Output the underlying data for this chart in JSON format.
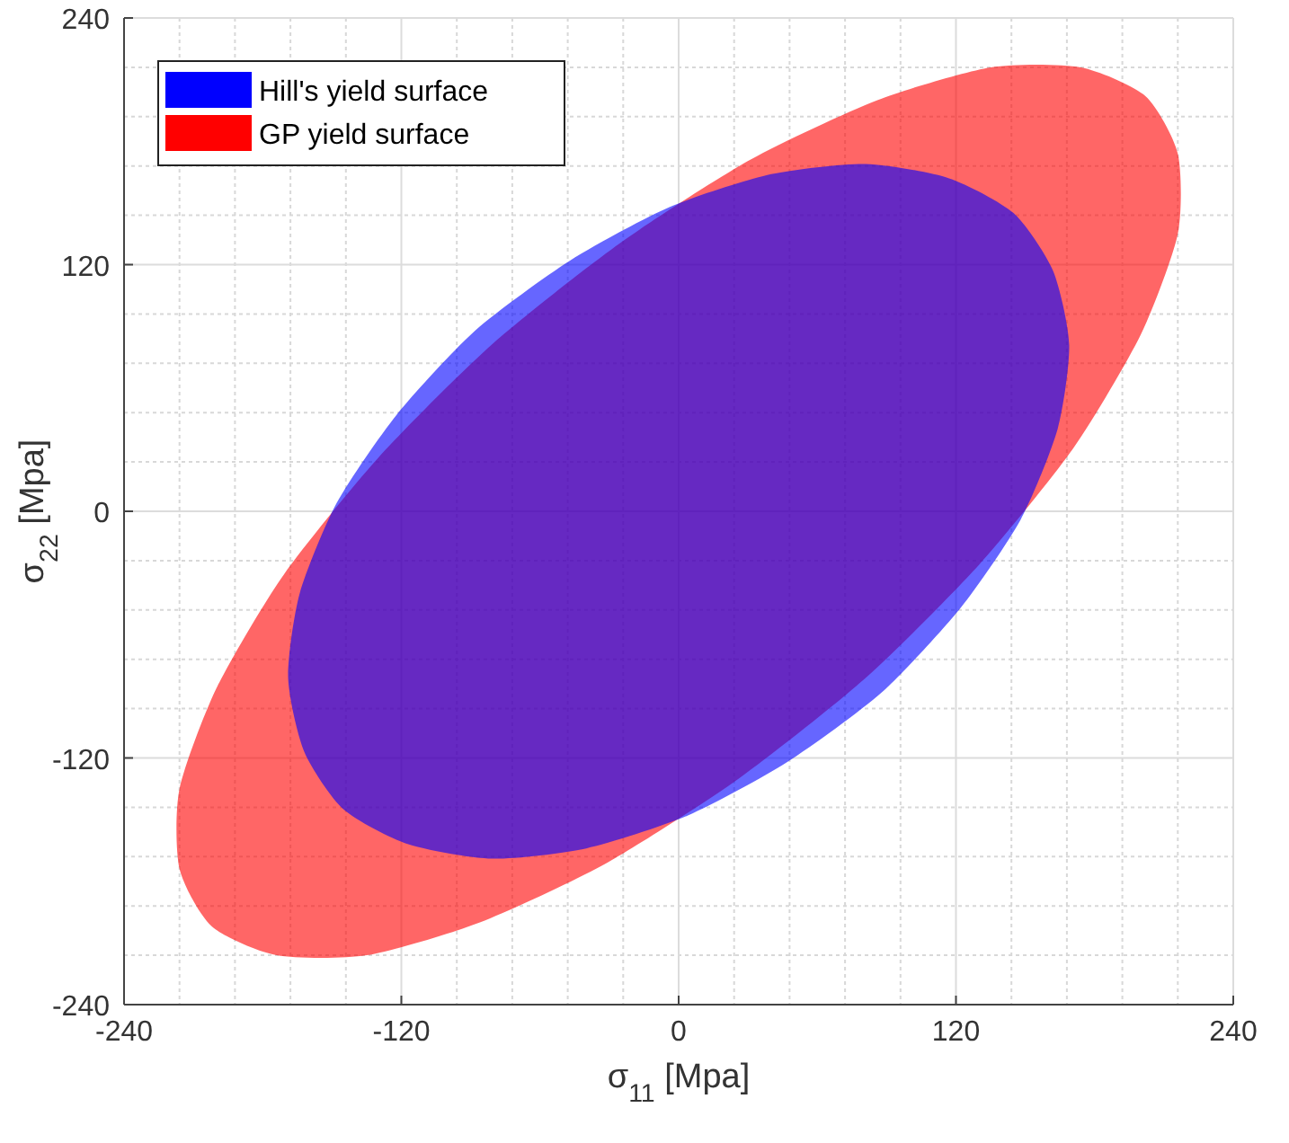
{
  "chart_data": {
    "type": "area",
    "xlabel": "σ$_{11}$ [Mpa]",
    "ylabel": "σ$_{22}$ [Mpa]",
    "xlim": [
      -240,
      240
    ],
    "ylim": [
      -240,
      240
    ],
    "xticks": [
      -240,
      -120,
      0,
      120,
      240
    ],
    "yticks": [
      -240,
      -120,
      0,
      120,
      240
    ],
    "grid": true,
    "legend": "top left",
    "series": [
      {
        "name": "GP yield surface",
        "color": "#ff0000",
        "x": [
          202,
          174,
          135,
          86,
          31,
          -26,
          -81,
          -130,
          -171,
          -200,
          -216,
          -216,
          -202,
          -174,
          -135,
          -86,
          -31,
          26,
          81,
          130,
          171,
          200,
          216,
          216
        ],
        "values": [
          202,
          216,
          216,
          200,
          171,
          130,
          81,
          26,
          -31,
          -86,
          -135,
          -174,
          -202,
          -216,
          -216,
          -200,
          -171,
          -130,
          -81,
          -26,
          31,
          86,
          135,
          174
        ]
      },
      {
        "name": "Hill's yield surface",
        "color": "#0000ff",
        "x": [
          145,
          117,
          81,
          40,
          -4,
          -47,
          -88,
          -122,
          -148,
          -164,
          -169,
          -162,
          -145,
          -117,
          -81,
          -40,
          4,
          47,
          88,
          122,
          148,
          164,
          169,
          162
        ],
        "values": [
          145,
          162,
          169,
          164,
          148,
          122,
          88,
          47,
          4,
          -40,
          -81,
          -117,
          -145,
          -162,
          -169,
          -164,
          -148,
          -122,
          -88,
          -47,
          -4,
          40,
          81,
          117
        ]
      }
    ]
  }
}
